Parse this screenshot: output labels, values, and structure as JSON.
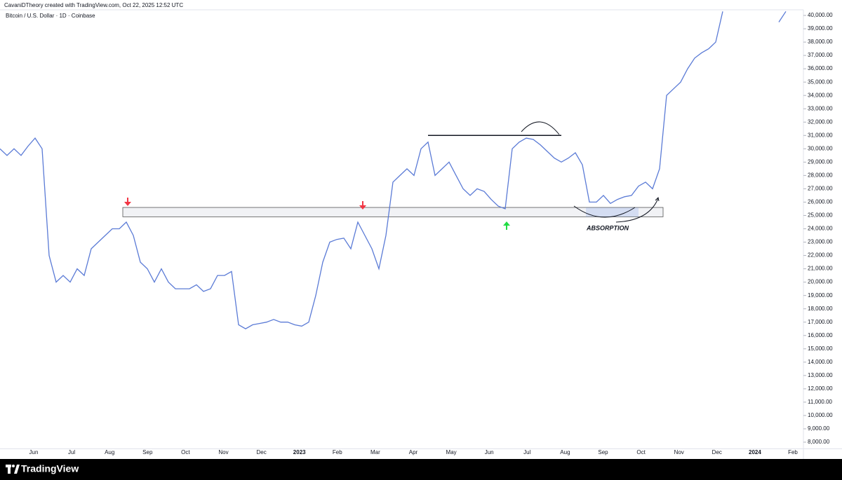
{
  "header": {
    "credit": "CavaniDTheory created with TradingView.com, Oct 22, 2025 12:52 UTC",
    "brand": "TradingView"
  },
  "chart_data": {
    "type": "line",
    "title": "Bitcoin / U.S. Dollar · 1D · Coinbase",
    "x_labels": [
      "Jun",
      "Jul",
      "Aug",
      "Sep",
      "Oct",
      "Nov",
      "Dec",
      "2023",
      "Feb",
      "Mar",
      "Apr",
      "May",
      "Jun",
      "Jul",
      "Aug",
      "Sep",
      "Oct",
      "Nov",
      "Dec",
      "2024",
      "Feb"
    ],
    "series": [
      {
        "name": "BTCUSD",
        "color": "#5b7bd6",
        "values": [
          30000,
          29500,
          30000,
          29500,
          30200,
          30800,
          30000,
          22000,
          20000,
          20500,
          20000,
          21000,
          20500,
          22500,
          23000,
          23500,
          24000,
          24000,
          24500,
          23500,
          21500,
          21000,
          20000,
          21000,
          20000,
          19500,
          19500,
          19500,
          19800,
          19300,
          19500,
          20500,
          20500,
          20800,
          16800,
          16500,
          16800,
          16900,
          17000,
          17200,
          17000,
          17000,
          16800,
          16700,
          17000,
          19000,
          21500,
          23000,
          23200,
          23300,
          22500,
          24500,
          23500,
          22500,
          21000,
          23500,
          27500,
          28000,
          28500,
          28000,
          30000,
          30500,
          28000,
          28500,
          29000,
          28000,
          27000,
          26500,
          27000,
          26800,
          26200,
          25700,
          25500,
          30000,
          30500,
          30800,
          30700,
          30300,
          29800,
          29300,
          29000,
          29300,
          29700,
          28800,
          26000,
          26000,
          26500,
          25900,
          26200,
          26400,
          26500,
          27200,
          27500,
          27000,
          28500,
          34000,
          34500,
          35000,
          36000,
          36800,
          37200,
          37500,
          38000,
          40300,
          null,
          null,
          null,
          null,
          null,
          null,
          null,
          39500,
          40300
        ]
      }
    ],
    "zone": {
      "low": 24900,
      "high": 25600
    },
    "resistance": 31000,
    "annotation": "ABSORPTION",
    "ylim": [
      7500,
      40500
    ],
    "yticks": [
      {
        "value": 8000,
        "label": "8,000.00"
      },
      {
        "value": 9000,
        "label": "9,000.00"
      },
      {
        "value": 10000,
        "label": "10,000.00"
      },
      {
        "value": 11000,
        "label": "11,000.00"
      },
      {
        "value": 12000,
        "label": "12,000.00"
      },
      {
        "value": 13000,
        "label": "13,000.00"
      },
      {
        "value": 14000,
        "label": "14,000.00"
      },
      {
        "value": 15000,
        "label": "15,000.00"
      },
      {
        "value": 16000,
        "label": "16,000.00"
      },
      {
        "value": 17000,
        "label": "17,000.00"
      },
      {
        "value": 18000,
        "label": "18,000.00"
      },
      {
        "value": 19000,
        "label": "19,000.00"
      },
      {
        "value": 20000,
        "label": "20,000.00"
      },
      {
        "value": 21000,
        "label": "21,000.00"
      },
      {
        "value": 22000,
        "label": "22,000.00"
      },
      {
        "value": 23000,
        "label": "23,000.00"
      },
      {
        "value": 24000,
        "label": "24,000.00"
      },
      {
        "value": 25000,
        "label": "25,000.00"
      },
      {
        "value": 26000,
        "label": "26,000.00"
      },
      {
        "value": 27000,
        "label": "27,000.00"
      },
      {
        "value": 28000,
        "label": "28,000.00"
      },
      {
        "value": 29000,
        "label": "29,000.00"
      },
      {
        "value": 30000,
        "label": "30,000.00"
      },
      {
        "value": 31000,
        "label": "31,000.00"
      },
      {
        "value": 32000,
        "label": "32,000.00"
      },
      {
        "value": 33000,
        "label": "33,000.00"
      },
      {
        "value": 34000,
        "label": "34,000.00"
      },
      {
        "value": 35000,
        "label": "35,000.00"
      },
      {
        "value": 36000,
        "label": "36,000.00"
      },
      {
        "value": 37000,
        "label": "37,000.00"
      },
      {
        "value": 38000,
        "label": "38,000.00"
      },
      {
        "value": 39000,
        "label": "39,000.00"
      },
      {
        "value": 40000,
        "label": "40,000.00"
      }
    ]
  }
}
